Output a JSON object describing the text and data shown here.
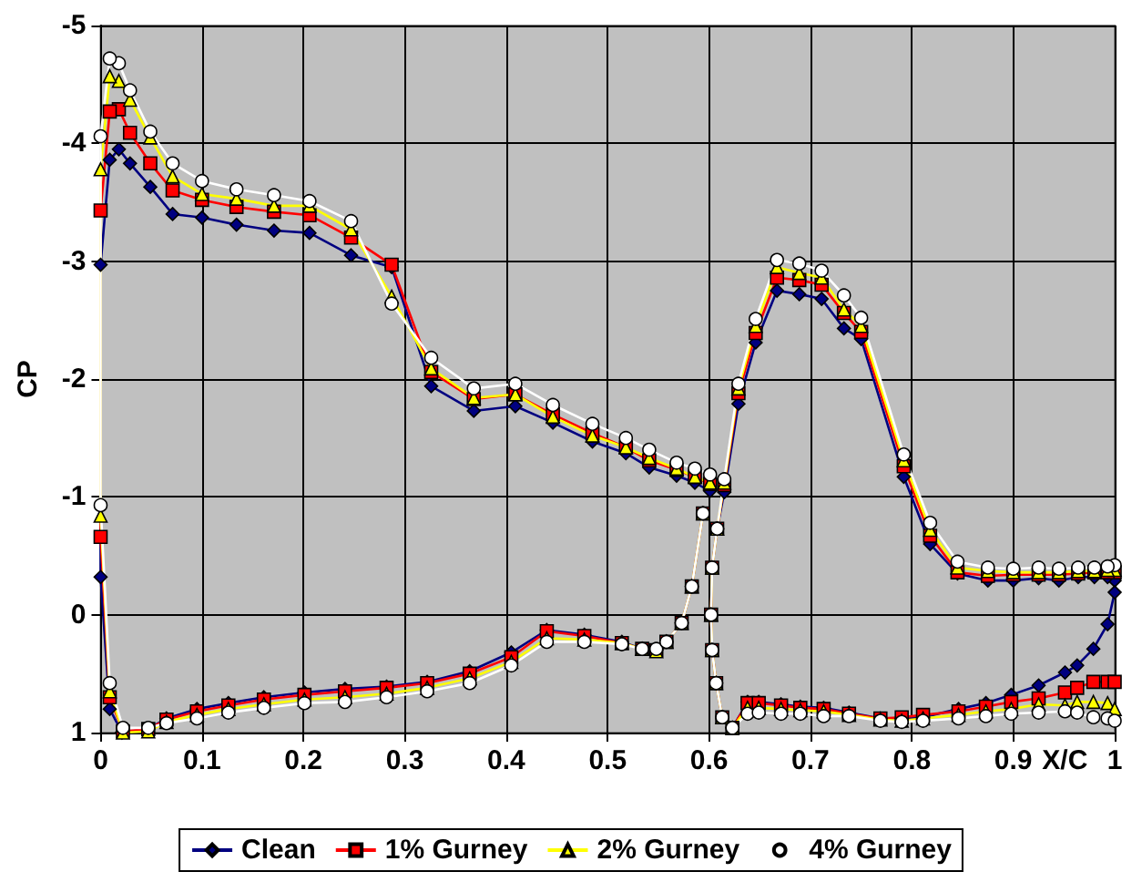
{
  "chart_data": {
    "type": "line",
    "xlabel": "X/C",
    "ylabel": "CP",
    "xlim": [
      0,
      1
    ],
    "xticks": [
      0,
      0.1,
      0.2,
      0.3,
      0.4,
      0.5,
      0.6,
      0.7,
      0.8,
      0.9,
      1
    ],
    "ylim": [
      1,
      -5
    ],
    "yticks": [
      -5,
      -4,
      -3,
      -2,
      -1,
      0,
      1
    ],
    "grid": true,
    "legend": "bottom",
    "line_style": "solid",
    "series": [
      {
        "name": "Clean",
        "color": "#000080",
        "marker": "diamond",
        "x": [
          0.601,
          0.586,
          0.568,
          0.541,
          0.518,
          0.485,
          0.446,
          0.409,
          0.368,
          0.326,
          0.287,
          0.247,
          0.206,
          0.171,
          0.134,
          0.1,
          0.071,
          0.049,
          0.029,
          0.018,
          0.009,
          0.0,
          0.0,
          0.009,
          0.021,
          0.047,
          0.065,
          0.095,
          0.126,
          0.161,
          0.201,
          0.241,
          0.282,
          0.322,
          0.364,
          0.405,
          0.44,
          0.477,
          0.514,
          0.534,
          0.548,
          0.558,
          0.573,
          0.583,
          0.594,
          null,
          1.0,
          0.993,
          0.98,
          0.964,
          0.945,
          0.925,
          0.9,
          0.875,
          0.845,
          0.818,
          0.792,
          0.75,
          0.733,
          0.711,
          0.689,
          0.667,
          0.646,
          0.629,
          0.615,
          0.608,
          0.603,
          0.602,
          0.603,
          0.607,
          0.613,
          0.623,
          0.638,
          0.649,
          0.671,
          0.69,
          0.713,
          0.738,
          0.769,
          0.79,
          0.811,
          0.846,
          0.873,
          0.898,
          0.925,
          0.951,
          0.963,
          0.979,
          0.993,
          1.0
        ],
        "values": [
          -1.05,
          -1.12,
          -1.18,
          -1.25,
          -1.37,
          -1.47,
          -1.63,
          -1.77,
          -1.73,
          -1.94,
          -2.95,
          -3.05,
          -3.24,
          -3.26,
          -3.31,
          -3.37,
          -3.4,
          -3.63,
          -3.83,
          -3.95,
          -3.86,
          -2.97,
          -0.32,
          0.8,
          1.0,
          0.97,
          0.88,
          0.8,
          0.75,
          0.7,
          0.66,
          0.63,
          0.61,
          0.57,
          0.48,
          0.32,
          0.13,
          0.17,
          0.23,
          0.29,
          0.3,
          0.23,
          0.07,
          -0.24,
          -0.86,
          null,
          -0.29,
          -0.32,
          -0.32,
          -0.32,
          -0.29,
          -0.31,
          -0.29,
          -0.29,
          -0.35,
          -0.6,
          -1.17,
          -2.34,
          -2.43,
          -2.68,
          -2.72,
          -2.75,
          -2.31,
          -1.79,
          -1.04,
          -0.73,
          -0.4,
          0.0,
          0.3,
          0.58,
          0.87,
          0.96,
          0.74,
          0.74,
          0.76,
          0.78,
          0.79,
          0.83,
          0.88,
          0.88,
          0.87,
          0.8,
          0.75,
          0.68,
          0.6,
          0.49,
          0.43,
          0.29,
          0.08,
          -0.19
        ]
      },
      {
        "name": "1% Gurney",
        "color": "#ff0000",
        "marker": "square",
        "x": [
          0.601,
          0.586,
          0.568,
          0.541,
          0.518,
          0.485,
          0.446,
          0.409,
          0.368,
          0.326,
          0.287,
          0.247,
          0.206,
          0.171,
          0.134,
          0.1,
          0.071,
          0.049,
          0.029,
          0.018,
          0.009,
          0.0,
          0.0,
          0.009,
          0.022,
          0.047,
          0.065,
          0.095,
          0.126,
          0.161,
          0.201,
          0.241,
          0.282,
          0.322,
          0.364,
          0.405,
          0.44,
          0.477,
          0.514,
          0.534,
          0.548,
          0.558,
          0.573,
          0.583,
          0.594,
          null,
          1.0,
          0.993,
          0.98,
          0.964,
          0.945,
          0.925,
          0.9,
          0.875,
          0.845,
          0.818,
          0.792,
          0.75,
          0.733,
          0.711,
          0.689,
          0.667,
          0.646,
          0.629,
          0.615,
          0.608,
          0.603,
          0.602,
          0.603,
          0.607,
          0.613,
          0.623,
          0.638,
          0.649,
          0.671,
          0.69,
          0.713,
          0.738,
          0.769,
          0.79,
          0.811,
          0.846,
          0.873,
          0.898,
          0.925,
          0.951,
          0.963,
          0.979,
          0.993,
          1.0
        ],
        "values": [
          -1.11,
          -1.17,
          -1.23,
          -1.31,
          -1.42,
          -1.54,
          -1.7,
          -1.87,
          -1.83,
          -2.06,
          -2.97,
          -3.2,
          -3.39,
          -3.42,
          -3.46,
          -3.52,
          -3.6,
          -3.83,
          -4.09,
          -4.29,
          -4.27,
          -3.43,
          -0.66,
          0.7,
          0.99,
          0.97,
          0.89,
          0.82,
          0.77,
          0.72,
          0.68,
          0.65,
          0.62,
          0.58,
          0.5,
          0.36,
          0.14,
          0.18,
          0.24,
          0.29,
          0.3,
          0.23,
          0.07,
          -0.24,
          -0.86,
          null,
          -0.36,
          -0.36,
          -0.36,
          -0.35,
          -0.34,
          -0.34,
          -0.34,
          -0.33,
          -0.36,
          -0.67,
          -1.26,
          -2.4,
          -2.56,
          -2.8,
          -2.84,
          -2.86,
          -2.39,
          -1.88,
          -1.1,
          -0.73,
          -0.4,
          0.0,
          0.3,
          0.58,
          0.87,
          0.96,
          0.75,
          0.75,
          0.77,
          0.79,
          0.8,
          0.84,
          0.88,
          0.87,
          0.85,
          0.82,
          0.78,
          0.74,
          0.71,
          0.66,
          0.62,
          0.57,
          0.57,
          0.57
        ]
      },
      {
        "name": "2% Gurney",
        "color": "#ffff00",
        "marker": "triangle",
        "x": [
          0.601,
          0.586,
          0.568,
          0.541,
          0.518,
          0.485,
          0.446,
          0.409,
          0.368,
          0.326,
          0.287,
          0.247,
          0.206,
          0.171,
          0.134,
          0.1,
          0.071,
          0.049,
          0.029,
          0.018,
          0.009,
          0.0,
          0.0,
          0.009,
          0.022,
          0.047,
          0.065,
          0.095,
          0.126,
          0.161,
          0.201,
          0.241,
          0.282,
          0.322,
          0.364,
          0.405,
          0.44,
          0.477,
          0.514,
          0.534,
          0.548,
          0.558,
          0.573,
          0.583,
          0.594,
          null,
          1.0,
          0.993,
          0.98,
          0.964,
          0.945,
          0.925,
          0.9,
          0.875,
          0.845,
          0.818,
          0.792,
          0.75,
          0.733,
          0.711,
          0.689,
          0.667,
          0.646,
          0.629,
          0.615,
          0.608,
          0.603,
          0.602,
          0.603,
          0.607,
          0.613,
          0.623,
          0.638,
          0.649,
          0.671,
          0.69,
          0.713,
          0.738,
          0.769,
          0.79,
          0.811,
          0.846,
          0.873,
          0.898,
          0.925,
          0.951,
          0.963,
          0.979,
          0.993,
          1.0
        ],
        "values": [
          -1.12,
          -1.17,
          -1.24,
          -1.33,
          -1.42,
          -1.52,
          -1.68,
          -1.87,
          -1.84,
          -2.09,
          -2.7,
          -3.27,
          -3.47,
          -3.47,
          -3.53,
          -3.57,
          -3.72,
          -4.05,
          -4.37,
          -4.53,
          -4.57,
          -3.78,
          -0.84,
          0.65,
          1.0,
          0.99,
          0.91,
          0.85,
          0.8,
          0.76,
          0.72,
          0.7,
          0.67,
          0.62,
          0.54,
          0.4,
          0.2,
          0.21,
          0.24,
          0.29,
          0.31,
          0.23,
          0.07,
          -0.24,
          -0.86,
          null,
          -0.38,
          -0.38,
          -0.37,
          -0.37,
          -0.36,
          -0.36,
          -0.36,
          -0.37,
          -0.4,
          -0.72,
          -1.31,
          -2.45,
          -2.59,
          -2.86,
          -2.9,
          -2.95,
          -2.45,
          -1.92,
          -1.12,
          -0.73,
          -0.4,
          0.0,
          0.3,
          0.58,
          0.87,
          0.96,
          0.79,
          0.79,
          0.8,
          0.81,
          0.82,
          0.85,
          0.89,
          0.9,
          0.88,
          0.85,
          0.82,
          0.8,
          0.76,
          0.77,
          0.74,
          0.74,
          0.75,
          0.8
        ]
      },
      {
        "name": "4% Gurney",
        "color": "#ffffff",
        "marker": "circle",
        "x": [
          0.601,
          0.586,
          0.568,
          0.541,
          0.518,
          0.485,
          0.446,
          0.409,
          0.368,
          0.326,
          0.287,
          0.247,
          0.206,
          0.171,
          0.134,
          0.1,
          0.071,
          0.049,
          0.029,
          0.018,
          0.009,
          0.0,
          0.0,
          0.009,
          0.022,
          0.047,
          0.065,
          0.095,
          0.126,
          0.161,
          0.201,
          0.241,
          0.282,
          0.322,
          0.364,
          0.405,
          0.44,
          0.477,
          0.514,
          0.534,
          0.548,
          0.558,
          0.573,
          0.583,
          0.594,
          null,
          1.0,
          0.993,
          0.98,
          0.964,
          0.945,
          0.925,
          0.9,
          0.875,
          0.845,
          0.818,
          0.792,
          0.75,
          0.733,
          0.711,
          0.689,
          0.667,
          0.646,
          0.629,
          0.615,
          0.608,
          0.603,
          0.602,
          0.603,
          0.607,
          0.613,
          0.623,
          0.638,
          0.649,
          0.671,
          0.69,
          0.713,
          0.738,
          0.769,
          0.79,
          0.811,
          0.846,
          0.873,
          0.898,
          0.925,
          0.951,
          0.963,
          0.979,
          0.993,
          1.0
        ],
        "values": [
          -1.19,
          -1.24,
          -1.29,
          -1.4,
          -1.5,
          -1.62,
          -1.78,
          -1.96,
          -1.92,
          -2.18,
          -2.64,
          -3.34,
          -3.51,
          -3.56,
          -3.61,
          -3.68,
          -3.83,
          -4.1,
          -4.45,
          -4.68,
          -4.72,
          -4.06,
          -0.93,
          0.58,
          0.96,
          0.96,
          0.92,
          0.88,
          0.83,
          0.79,
          0.75,
          0.74,
          0.7,
          0.65,
          0.58,
          0.43,
          0.23,
          0.23,
          0.25,
          0.29,
          0.29,
          0.23,
          0.07,
          -0.24,
          -0.86,
          null,
          -0.42,
          -0.41,
          -0.4,
          -0.4,
          -0.39,
          -0.4,
          -0.39,
          -0.4,
          -0.45,
          -0.78,
          -1.36,
          -2.52,
          -2.71,
          -2.92,
          -2.98,
          -3.01,
          -2.51,
          -1.96,
          -1.15,
          -0.73,
          -0.4,
          0.0,
          0.3,
          0.58,
          0.87,
          0.96,
          0.84,
          0.83,
          0.84,
          0.84,
          0.86,
          0.86,
          0.9,
          0.91,
          0.9,
          0.88,
          0.86,
          0.84,
          0.83,
          0.82,
          0.83,
          0.87,
          0.88,
          0.9
        ]
      }
    ]
  }
}
